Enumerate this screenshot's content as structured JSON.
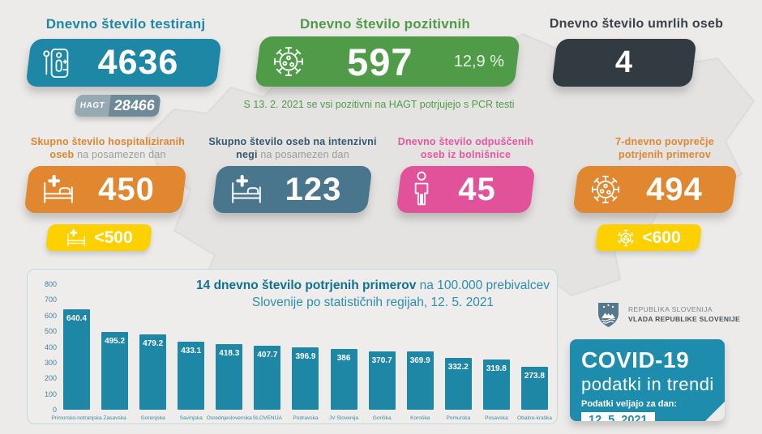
{
  "top_stats": [
    {
      "title": "Dnevno število testiranj",
      "value": "4636",
      "color": "#1f87a6",
      "title_color": "#1f87a6",
      "icon": "test-kit",
      "badge_label": "HAGT",
      "badge_value": "28466"
    },
    {
      "title": "Dnevno število pozitivnih",
      "value": "597",
      "percent": "12,9 %",
      "color": "#4f9b48",
      "title_color": "#4f9b48",
      "icon": "virus",
      "note": "S 13. 2. 2021 se vsi pozitivni na HAGT potrjujejo s PCR testi"
    },
    {
      "title": "Dnevno število umrlih oseb",
      "value": "4",
      "color": "#333b42",
      "title_color": "#39424a"
    }
  ],
  "mid_stats": [
    {
      "title_strong": "Skupno število hospitaliziranih oseb",
      "title_light": "na posamezen dan",
      "value": "450",
      "color": "#e0872f",
      "title_color": "#e0862f",
      "icon": "hospital-bed",
      "target_value": "<500"
    },
    {
      "title_strong": "Skupno število oseb na intenzivni negi",
      "title_light": "na posamezen dan",
      "value": "123",
      "color": "#49758d",
      "title_color": "#33586e",
      "icon": "hospital-bed"
    },
    {
      "title_strong": "Dnevno število odpuščenih oseb iz bolnišnice",
      "title_light": "",
      "value": "45",
      "color": "#e1529b",
      "title_color": "#e8569e",
      "icon": "person"
    },
    {
      "title_strong": "7-dnevno povprečje potrjenih primerov",
      "title_light": "",
      "value": "494",
      "color": "#e0872f",
      "title_color": "#e0862f",
      "icon": "virus",
      "target_value": "<600"
    }
  ],
  "chart_data": {
    "type": "bar",
    "title_strong": "14 dnevno število potrjenih primerov",
    "title_rest": "na 100.000 prebivalcev Slovenije po statističnih regijah, 12. 5. 2021",
    "categories": [
      "Primorsko-notranjska",
      "Zasavska",
      "Gorenjska",
      "Savinjska",
      "Osrednjeslovenska",
      "SLOVENIJA",
      "Podravska",
      "JV Slovenija",
      "Goriška",
      "Koroška",
      "Pomurska",
      "Posavska",
      "Obalno-kraška"
    ],
    "values": [
      640.4,
      495.2,
      479.2,
      433.1,
      418.3,
      407.7,
      396.9,
      386,
      370.7,
      369.9,
      332.2,
      319.8,
      273.8
    ],
    "ylim": [
      0,
      800
    ],
    "yticks": [
      800,
      700,
      600,
      500,
      400,
      300,
      200,
      100,
      0
    ],
    "bar_color": "#1f87a6",
    "grid": false,
    "legend": "none",
    "xlabel": "",
    "ylabel": ""
  },
  "footer": {
    "gov_line1": "REPUBLIKA SLOVENIJA",
    "gov_line2": "VLADA REPUBLIKE SLOVENIJE",
    "covid_title": "COVID-19",
    "covid_subtitle": "podatki in trendi",
    "date_label": "Podatki veljajo za dan:",
    "date_value": "12. 5. 2021"
  }
}
